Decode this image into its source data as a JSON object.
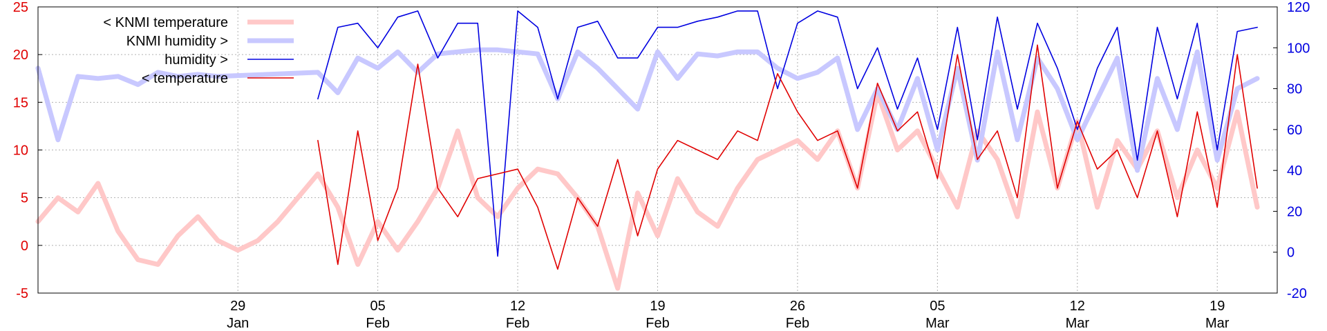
{
  "chart_data": {
    "type": "line",
    "title": "",
    "legend": {
      "placement": "top-left",
      "entries": [
        {
          "label": "< KNMI temperature",
          "color": "#ffc8c8",
          "style": "thick"
        },
        {
          "label": "KNMI humidity >",
          "color": "#c8c8ff",
          "style": "thick"
        },
        {
          "label": "humidity >",
          "color": "#0000e0",
          "style": "thin"
        },
        {
          "label": "< temperature",
          "color": "#e00000",
          "style": "thin"
        }
      ]
    },
    "y_left": {
      "min": -5,
      "max": 25,
      "ticks": [
        "-5",
        "0",
        "5",
        "10",
        "15",
        "20",
        "25"
      ],
      "color": "#e00000"
    },
    "y_right": {
      "min": -20,
      "max": 120,
      "ticks": [
        "-20",
        "0",
        "20",
        "40",
        "60",
        "80",
        "100",
        "120"
      ],
      "color": "#0000e0"
    },
    "x_axis": {
      "unit": "day",
      "start": "2015-01-19",
      "end": "2015-03-22",
      "grid": true,
      "ticks": [
        {
          "date": "2015-01-29",
          "day": "29",
          "month": "Jan"
        },
        {
          "date": "2015-02-05",
          "day": "05",
          "month": "Feb"
        },
        {
          "date": "2015-02-12",
          "day": "12",
          "month": "Feb"
        },
        {
          "date": "2015-02-19",
          "day": "19",
          "month": "Feb"
        },
        {
          "date": "2015-02-26",
          "day": "26",
          "month": "Feb"
        },
        {
          "date": "2015-03-05",
          "day": "05",
          "month": "Mar"
        },
        {
          "date": "2015-03-12",
          "day": "12",
          "month": "Mar"
        },
        {
          "date": "2015-03-19",
          "day": "19",
          "month": "Mar"
        }
      ]
    },
    "series": [
      {
        "name": "< KNMI temperature",
        "axis": "left",
        "color": "#ffc8c8",
        "x": [
          "2015-01-19",
          "2015-01-20",
          "2015-01-21",
          "2015-01-22",
          "2015-01-23",
          "2015-01-24",
          "2015-01-25",
          "2015-01-26",
          "2015-01-27",
          "2015-01-28",
          "2015-01-29",
          "2015-01-30",
          "2015-01-31",
          "2015-02-01",
          "2015-02-02",
          "2015-02-03",
          "2015-02-04",
          "2015-02-05",
          "2015-02-06",
          "2015-02-07",
          "2015-02-08",
          "2015-02-09",
          "2015-02-10",
          "2015-02-11",
          "2015-02-12",
          "2015-02-13",
          "2015-02-14",
          "2015-02-15",
          "2015-02-16",
          "2015-02-17",
          "2015-02-18",
          "2015-02-19",
          "2015-02-20",
          "2015-02-21",
          "2015-02-22",
          "2015-02-23",
          "2015-02-24",
          "2015-02-25",
          "2015-02-26",
          "2015-02-27",
          "2015-02-28",
          "2015-03-01",
          "2015-03-02",
          "2015-03-03",
          "2015-03-04",
          "2015-03-05",
          "2015-03-06",
          "2015-03-07",
          "2015-03-08",
          "2015-03-09",
          "2015-03-10",
          "2015-03-11",
          "2015-03-12",
          "2015-03-13",
          "2015-03-14",
          "2015-03-15",
          "2015-03-16",
          "2015-03-17",
          "2015-03-18",
          "2015-03-19",
          "2015-03-20",
          "2015-03-21"
        ],
        "y": [
          2.5,
          5,
          3.5,
          6.5,
          1.5,
          -1.5,
          -2,
          1,
          3,
          0.5,
          -0.5,
          0.5,
          2.5,
          5,
          7.5,
          4,
          -2,
          2.5,
          -0.5,
          2.5,
          6,
          12,
          5,
          3,
          6,
          8,
          7.5,
          5,
          2,
          -4.5,
          5.5,
          1,
          7,
          3.5,
          2,
          6,
          9,
          10,
          11,
          9,
          12,
          6,
          16,
          10,
          12,
          8,
          4,
          12,
          9,
          3,
          14,
          6,
          13,
          4,
          11,
          8,
          12,
          5,
          10,
          6,
          14,
          4
        ]
      },
      {
        "name": "KNMI humidity >",
        "axis": "right",
        "color": "#c8c8ff",
        "x": [
          "2015-01-19",
          "2015-01-20",
          "2015-01-21",
          "2015-01-22",
          "2015-01-23",
          "2015-01-24",
          "2015-01-25",
          "2015-01-26",
          "2015-01-27",
          "2015-01-28",
          "2015-02-02",
          "2015-02-03",
          "2015-02-04",
          "2015-02-05",
          "2015-02-06",
          "2015-02-07",
          "2015-02-08",
          "2015-02-09",
          "2015-02-10",
          "2015-02-11",
          "2015-02-12",
          "2015-02-13",
          "2015-02-14",
          "2015-02-15",
          "2015-02-16",
          "2015-02-17",
          "2015-02-18",
          "2015-02-19",
          "2015-02-20",
          "2015-02-21",
          "2015-02-22",
          "2015-02-23",
          "2015-02-24",
          "2015-02-25",
          "2015-02-26",
          "2015-02-27",
          "2015-02-28",
          "2015-03-01",
          "2015-03-02",
          "2015-03-03",
          "2015-03-04",
          "2015-03-05",
          "2015-03-06",
          "2015-03-07",
          "2015-03-08",
          "2015-03-09",
          "2015-03-10",
          "2015-03-11",
          "2015-03-12",
          "2015-03-13",
          "2015-03-14",
          "2015-03-15",
          "2015-03-16",
          "2015-03-17",
          "2015-03-18",
          "2015-03-19",
          "2015-03-20",
          "2015-03-21"
        ],
        "y": [
          90,
          55,
          86,
          85,
          86,
          82,
          88,
          86,
          87,
          86,
          88,
          78,
          95,
          90,
          98,
          88,
          97,
          98,
          99,
          99,
          98,
          97,
          75,
          98,
          90,
          80,
          70,
          98,
          85,
          97,
          96,
          98,
          98,
          90,
          85,
          88,
          95,
          60,
          80,
          60,
          85,
          50,
          90,
          45,
          98,
          55,
          95,
          80,
          55,
          75,
          95,
          40,
          85,
          60,
          98,
          45,
          80,
          85
        ]
      },
      {
        "name": "humidity >",
        "axis": "right",
        "color": "#0000e0",
        "x": [
          "2015-02-02",
          "2015-02-03",
          "2015-02-04",
          "2015-02-05",
          "2015-02-06",
          "2015-02-07",
          "2015-02-08",
          "2015-02-09",
          "2015-02-10",
          "2015-02-11",
          "2015-02-12",
          "2015-02-13",
          "2015-02-14",
          "2015-02-15",
          "2015-02-16",
          "2015-02-17",
          "2015-02-18",
          "2015-02-19",
          "2015-02-20",
          "2015-02-21",
          "2015-02-22",
          "2015-02-23",
          "2015-02-24",
          "2015-02-25",
          "2015-02-26",
          "2015-02-27",
          "2015-02-28",
          "2015-03-01",
          "2015-03-02",
          "2015-03-03",
          "2015-03-04",
          "2015-03-05",
          "2015-03-06",
          "2015-03-07",
          "2015-03-08",
          "2015-03-09",
          "2015-03-10",
          "2015-03-11",
          "2015-03-12",
          "2015-03-13",
          "2015-03-14",
          "2015-03-15",
          "2015-03-16",
          "2015-03-17",
          "2015-03-18",
          "2015-03-19",
          "2015-03-20",
          "2015-03-21"
        ],
        "y": [
          75,
          110,
          112,
          100,
          115,
          118,
          95,
          112,
          112,
          -2,
          118,
          110,
          75,
          110,
          113,
          95,
          95,
          110,
          110,
          113,
          115,
          118,
          118,
          80,
          112,
          118,
          115,
          80,
          100,
          70,
          95,
          60,
          110,
          55,
          115,
          70,
          112,
          90,
          60,
          90,
          110,
          45,
          110,
          75,
          112,
          50,
          108,
          110
        ]
      },
      {
        "name": "< temperature",
        "axis": "left",
        "color": "#e00000",
        "x": [
          "2015-02-02",
          "2015-02-03",
          "2015-02-04",
          "2015-02-05",
          "2015-02-06",
          "2015-02-07",
          "2015-02-08",
          "2015-02-09",
          "2015-02-10",
          "2015-02-11",
          "2015-02-12",
          "2015-02-13",
          "2015-02-14",
          "2015-02-15",
          "2015-02-16",
          "2015-02-17",
          "2015-02-18",
          "2015-02-19",
          "2015-02-20",
          "2015-02-21",
          "2015-02-22",
          "2015-02-23",
          "2015-02-24",
          "2015-02-25",
          "2015-02-26",
          "2015-02-27",
          "2015-02-28",
          "2015-03-01",
          "2015-03-02",
          "2015-03-03",
          "2015-03-04",
          "2015-03-05",
          "2015-03-06",
          "2015-03-07",
          "2015-03-08",
          "2015-03-09",
          "2015-03-10",
          "2015-03-11",
          "2015-03-12",
          "2015-03-13",
          "2015-03-14",
          "2015-03-15",
          "2015-03-16",
          "2015-03-17",
          "2015-03-18",
          "2015-03-19",
          "2015-03-20",
          "2015-03-21"
        ],
        "y": [
          11,
          -2,
          12,
          0.5,
          6,
          19,
          6,
          3,
          7,
          7.5,
          8,
          4,
          -2.5,
          5,
          2,
          9,
          1,
          8,
          11,
          10,
          9,
          12,
          11,
          18,
          14,
          11,
          12,
          6,
          17,
          12,
          14,
          7,
          20,
          9,
          12,
          5,
          21,
          6,
          13,
          8,
          10,
          5,
          12,
          3,
          14,
          4,
          20,
          6
        ]
      }
    ]
  }
}
